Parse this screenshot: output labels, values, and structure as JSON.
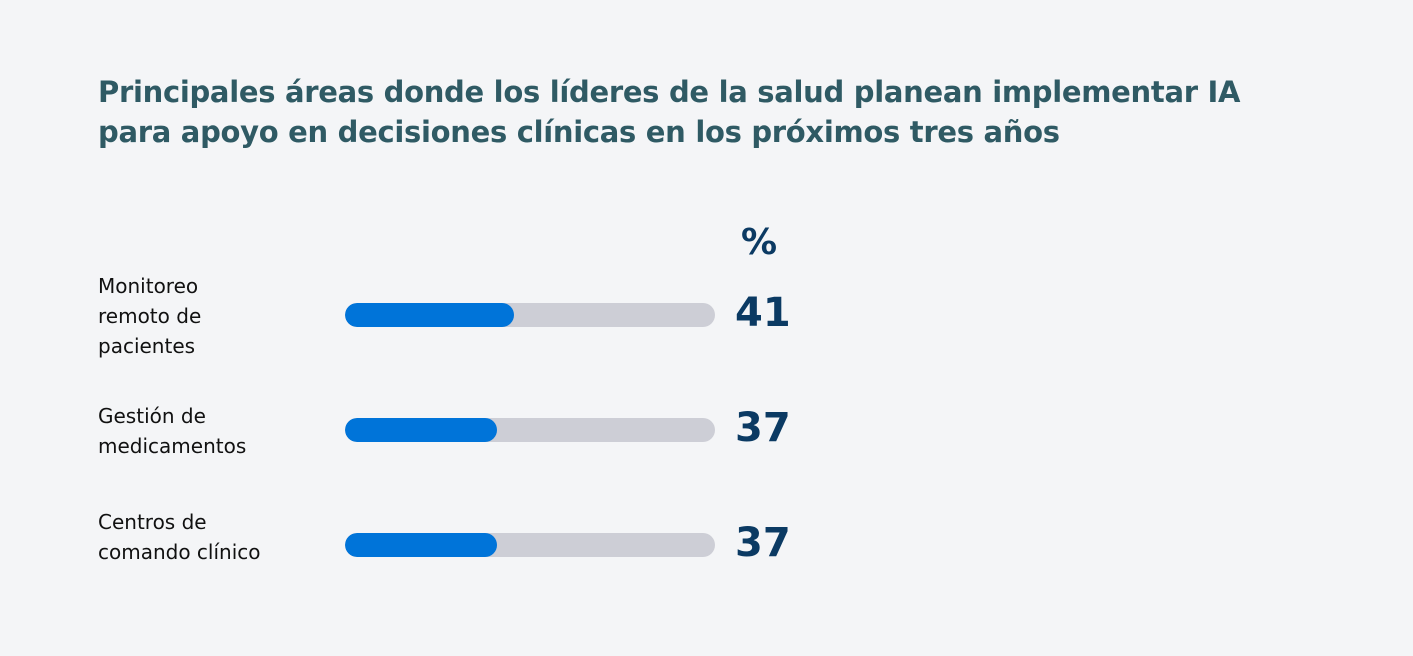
{
  "chart_data": {
    "type": "bar",
    "orientation": "horizontal",
    "title": "Principales áreas donde los líderes de la salud planean implementar IA para apoyo en decisiones clínicas en los próximos tres años",
    "unit_label": "%",
    "categories": [
      "Monitoreo\nremoto de\npacientes",
      "Gestión de\nmedicamentos",
      "Centros de\ncomando clínico"
    ],
    "values": [
      41,
      37,
      37
    ],
    "xlim": [
      0,
      90
    ],
    "grid": false,
    "colors": {
      "fill": "#0074d9",
      "track": "#cdced6",
      "value_text": "#0b3a63",
      "title": "#2f5a64",
      "background": "#f4f5f7"
    }
  }
}
